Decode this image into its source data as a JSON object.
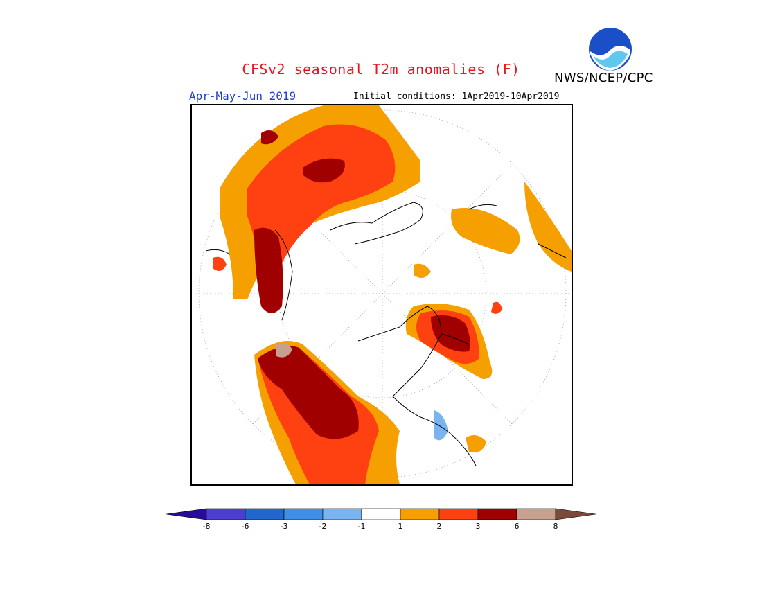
{
  "title": "CFSv2 seasonal T2m anomalies (F)",
  "agency": "NWS/NCEP/CPC",
  "logo_text": "NOAA",
  "period": "Apr-May-Jun 2019",
  "initial_conditions": "Initial conditions: 1Apr2019-10Apr2019",
  "colors": {
    "title": "#e8141e",
    "period": "#1f3fd4"
  },
  "colorbar": {
    "labels": [
      "-8",
      "-6",
      "-3",
      "-2",
      "-1",
      "1",
      "2",
      "3",
      "6",
      "8"
    ],
    "colors": [
      "#2a0a9c",
      "#4a3fd0",
      "#2266d0",
      "#3f8fe8",
      "#7ab4f0",
      "#ffffff",
      "#f5a000",
      "#ff4010",
      "#a00000",
      "#c8a090",
      "#7a4a3a"
    ]
  }
}
